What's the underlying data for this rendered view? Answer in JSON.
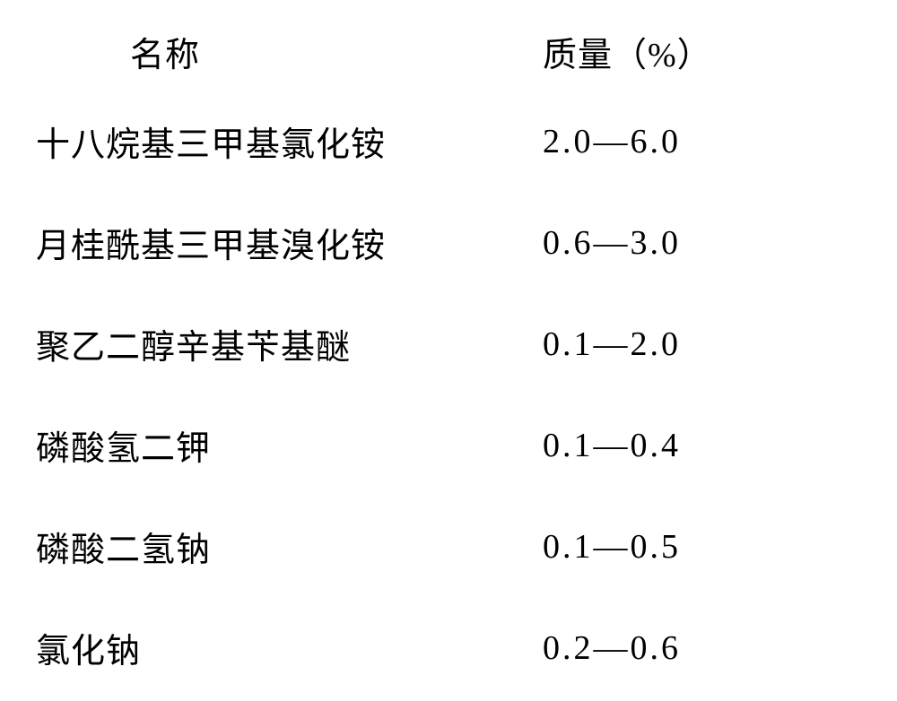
{
  "table": {
    "headers": {
      "name": "名称",
      "value": "质量（%）"
    },
    "rows": [
      {
        "name": "十八烷基三甲基氯化铵",
        "value": "2.0—6.0"
      },
      {
        "name": "月桂酰基三甲基溴化铵",
        "value": "0.6—3.0"
      },
      {
        "name": "聚乙二醇辛基苄基醚",
        "value": "0.1—2.0"
      },
      {
        "name": "磷酸氢二钾",
        "value": "0.1—0.4"
      },
      {
        "name": "磷酸二氢钠",
        "value": "0.1—0.5"
      },
      {
        "name": "氯化钠",
        "value": "0.2—0.6"
      }
    ],
    "styling": {
      "background_color": "#ffffff",
      "text_color": "#000000",
      "font_family": "SimSun",
      "header_fontsize": 38,
      "cell_fontsize": 38,
      "row_spacing": 58,
      "col_name_width": 565,
      "value_letter_spacing": 3
    }
  }
}
